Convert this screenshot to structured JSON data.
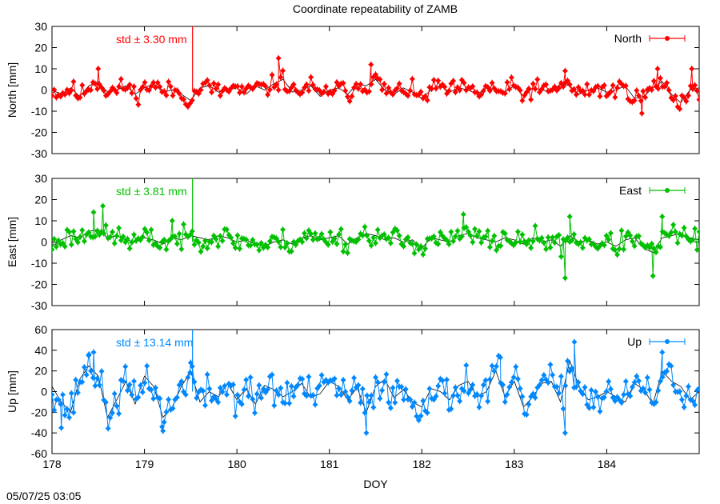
{
  "title": "Coordinate repeatability of ZAMB",
  "timestamp": "05/07/25 03:05",
  "chart_data": [
    {
      "type": "scatter",
      "ylabel": "North [mm]",
      "xlabel": "",
      "series": [
        {
          "name": "North",
          "color": "#ff0000",
          "rms": 3.3,
          "seed": 11,
          "spikes": [
            [
              178.5,
              10
            ],
            [
              180.45,
              15
            ],
            [
              181.45,
              12
            ],
            [
              183.55,
              9
            ],
            [
              184.38,
              -11
            ],
            [
              184.55,
              10
            ],
            [
              184.92,
              10
            ]
          ],
          "x": [
            178,
            178.1,
            178.2,
            178.3,
            178.4,
            178.5,
            178.6,
            178.7,
            178.8,
            178.9,
            179,
            179.1,
            179.2,
            179.3,
            179.4,
            179.5,
            179.6,
            179.7,
            179.8,
            179.9,
            180,
            180.1,
            180.2,
            180.3,
            180.4,
            180.5,
            180.6,
            180.7,
            180.8,
            180.9,
            181,
            181.1,
            181.2,
            181.3,
            181.4,
            181.5,
            181.6,
            181.7,
            181.8,
            181.9,
            182,
            182.1,
            182.2,
            182.3,
            182.4,
            182.5,
            182.6,
            182.7,
            182.8,
            182.9,
            183,
            183.1,
            183.2,
            183.3,
            183.4,
            183.5,
            183.6,
            183.7,
            183.8,
            183.9,
            184,
            184.1,
            184.2,
            184.3,
            184.4,
            184.5,
            184.6,
            184.7,
            184.8,
            184.9,
            185
          ],
          "values": [
            0,
            -2,
            1,
            -3,
            2,
            4,
            -1,
            0,
            2,
            -2,
            1,
            3,
            -1,
            0,
            -2,
            -5,
            1,
            2,
            -1,
            0,
            1,
            -2,
            2,
            0,
            3,
            5,
            -1,
            0,
            2,
            -3,
            0,
            1,
            -2,
            3,
            2,
            5,
            0,
            -2,
            1,
            -1,
            -4,
            0,
            2,
            -1,
            1,
            0,
            -2,
            1,
            0,
            -1,
            2,
            -3,
            1,
            0,
            -1,
            3,
            2,
            -2,
            0,
            1,
            -1,
            0,
            2,
            -4,
            -3,
            1,
            4,
            -2,
            -6,
            0,
            1
          ]
        }
      ],
      "std_text": "std ± 3.30 mm",
      "vertical_marker_x": 179.52,
      "ylim": [
        -30,
        30
      ],
      "yticks": [
        30,
        20,
        10,
        0,
        -10,
        -20,
        -30
      ]
    },
    {
      "type": "scatter",
      "ylabel": "East [mm]",
      "xlabel": "",
      "series": [
        {
          "name": "East",
          "color": "#00c000",
          "rms": 3.81,
          "seed": 23,
          "spikes": [
            [
              178.45,
              14
            ],
            [
              178.55,
              17
            ],
            [
              179.3,
              10
            ],
            [
              182.45,
              13
            ],
            [
              183.55,
              -17
            ],
            [
              183.6,
              12
            ],
            [
              184.5,
              -16
            ],
            [
              184.6,
              12
            ]
          ],
          "x": [
            178,
            178.1,
            178.2,
            178.3,
            178.4,
            178.5,
            178.6,
            178.7,
            178.8,
            178.9,
            179,
            179.1,
            179.2,
            179.3,
            179.4,
            179.5,
            179.6,
            179.7,
            179.8,
            179.9,
            180,
            180.1,
            180.2,
            180.3,
            180.4,
            180.5,
            180.6,
            180.7,
            180.8,
            180.9,
            181,
            181.1,
            181.2,
            181.3,
            181.4,
            181.5,
            181.6,
            181.7,
            181.8,
            181.9,
            182,
            182.1,
            182.2,
            182.3,
            182.4,
            182.5,
            182.6,
            182.7,
            182.8,
            182.9,
            183,
            183.1,
            183.2,
            183.3,
            183.4,
            183.5,
            183.6,
            183.7,
            183.8,
            183.9,
            184,
            184.1,
            184.2,
            184.3,
            184.4,
            184.5,
            184.6,
            184.7,
            184.8,
            184.9,
            185
          ],
          "values": [
            -2,
            1,
            3,
            2,
            5,
            6,
            2,
            3,
            1,
            0,
            2,
            1,
            -1,
            2,
            1,
            3,
            2,
            1,
            3,
            2,
            0,
            1,
            -1,
            -2,
            0,
            1,
            -1,
            2,
            3,
            1,
            2,
            3,
            -1,
            2,
            4,
            3,
            1,
            2,
            0,
            1,
            -3,
            2,
            1,
            0,
            3,
            4,
            2,
            1,
            0,
            2,
            1,
            -1,
            2,
            0,
            1,
            -2,
            3,
            0,
            1,
            -1,
            0,
            -2,
            1,
            2,
            -3,
            -5,
            2,
            3,
            4,
            2,
            1
          ]
        }
      ],
      "std_text": "std ± 3.81 mm",
      "vertical_marker_x": 179.52,
      "ylim": [
        -30,
        30
      ],
      "yticks": [
        30,
        20,
        10,
        0,
        -10,
        -20,
        -30
      ]
    },
    {
      "type": "scatter",
      "ylabel": "Up [mm]",
      "xlabel": "DOY",
      "series": [
        {
          "name": "Up",
          "color": "#0088ff",
          "rms": 13.14,
          "seed": 37,
          "spikes": [
            [
              178.4,
              36
            ],
            [
              178.1,
              -35
            ],
            [
              178.45,
              38
            ],
            [
              179.2,
              -38
            ],
            [
              179.5,
              28
            ],
            [
              181.4,
              -40
            ],
            [
              182.85,
              33
            ],
            [
              183.55,
              -40
            ],
            [
              183.65,
              48
            ],
            [
              184.6,
              38
            ]
          ],
          "x": [
            178,
            178.1,
            178.2,
            178.3,
            178.4,
            178.5,
            178.6,
            178.7,
            178.8,
            178.9,
            179,
            179.1,
            179.2,
            179.3,
            179.4,
            179.5,
            179.6,
            179.7,
            179.8,
            179.9,
            180,
            180.1,
            180.2,
            180.3,
            180.4,
            180.5,
            180.6,
            180.7,
            180.8,
            180.9,
            181,
            181.1,
            181.2,
            181.3,
            181.4,
            181.5,
            181.6,
            181.7,
            181.8,
            181.9,
            182,
            182.1,
            182.2,
            182.3,
            182.4,
            182.5,
            182.6,
            182.7,
            182.8,
            182.9,
            183,
            183.1,
            183.2,
            183.3,
            183.4,
            183.5,
            183.6,
            183.7,
            183.8,
            183.9,
            184,
            184.1,
            184.2,
            184.3,
            184.4,
            184.5,
            184.6,
            184.7,
            184.8,
            184.9,
            185
          ],
          "values": [
            5,
            -10,
            -20,
            12,
            25,
            15,
            -25,
            -8,
            10,
            -12,
            15,
            5,
            -25,
            -15,
            5,
            20,
            -10,
            0,
            -5,
            8,
            -8,
            3,
            -12,
            6,
            2,
            -5,
            0,
            8,
            -6,
            -2,
            10,
            5,
            -8,
            4,
            -20,
            5,
            12,
            -6,
            2,
            -10,
            -15,
            3,
            0,
            -8,
            6,
            10,
            -5,
            0,
            20,
            -5,
            10,
            -15,
            -5,
            8,
            10,
            -10,
            30,
            5,
            -8,
            -5,
            0,
            -5,
            -10,
            8,
            2,
            -12,
            20,
            10,
            5,
            -8,
            0
          ]
        }
      ],
      "std_text": "std ± 13.14 mm",
      "vertical_marker_x": 179.52,
      "ylim": [
        -60,
        60
      ],
      "yticks": [
        60,
        40,
        20,
        0,
        -20,
        -40,
        -60
      ]
    }
  ],
  "xaxis": {
    "xlim": [
      178,
      185
    ],
    "tick_labels": [
      "178",
      "179",
      "180",
      "181",
      "182",
      "183",
      "184"
    ],
    "tick_values": [
      178,
      179,
      180,
      181,
      182,
      183,
      184
    ]
  }
}
